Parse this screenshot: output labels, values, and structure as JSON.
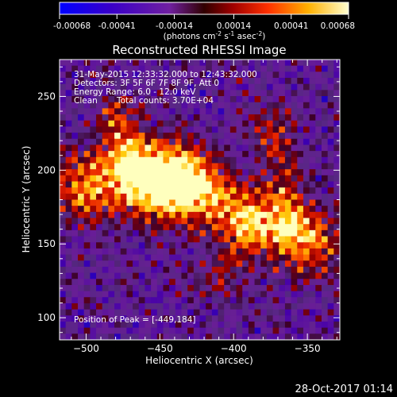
{
  "colorbar": {
    "ticks": [
      "-0.00068",
      "-0.00041",
      "-0.00014",
      "0.00014",
      "0.00041",
      "0.00068"
    ],
    "tick_values": [
      -0.00068,
      -0.00041,
      -0.00014,
      0.00014,
      0.00041,
      0.00068
    ],
    "range": [
      -0.00068,
      0.00068
    ],
    "units_prefix": "(photons cm",
    "units_sup1": "-2",
    "units_mid": " s",
    "units_sup2": "-1",
    "units_mid2": " asec",
    "units_sup3": "-2",
    "units_suffix": ")"
  },
  "title": "Reconstructed RHESSI Image",
  "info": {
    "line1": "31-May-2015 12:33:32.000 to 12:43:32.000",
    "line2": "Detectors: 3F 5F 6F 7F 8F 9F, Att 0",
    "line3": "Energy Range: 6.0 - 12.0 keV",
    "line4_algo": "Clean",
    "line4_counts": "Total counts: 3.70E+04"
  },
  "peak_label": "Position of Peak = [-449,184]",
  "footer": "28-Oct-2017 01:14",
  "chart_data": {
    "type": "heatmap",
    "title": "Reconstructed RHESSI Image",
    "xlabel": "Heliocentric X (arcsec)",
    "ylabel": "Heliocentric Y (arcsec)",
    "xlim": [
      -518,
      -328
    ],
    "ylim": [
      85,
      275
    ],
    "xticks": [
      -500,
      -450,
      -400,
      -350
    ],
    "xtick_labels": [
      "−500",
      "−450",
      "−400",
      "−350"
    ],
    "yticks": [
      100,
      150,
      200,
      250
    ],
    "ytick_labels": [
      "100",
      "150",
      "200",
      "250"
    ],
    "colormap": "hot (fire) diverging",
    "peak_position": [
      -449,
      184
    ],
    "note": "Bright emission band running diagonally from upper-left (~-480,240) through peak (~-449,184) to right (~-350,150)"
  }
}
